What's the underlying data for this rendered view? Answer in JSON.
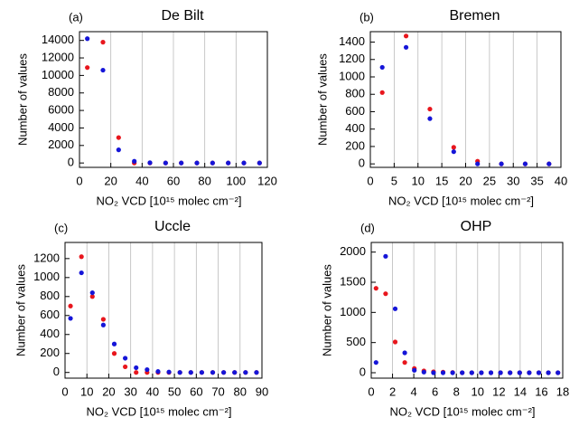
{
  "chart_data": [
    {
      "type": "scatter",
      "panel": "(a)",
      "title": "De Bilt",
      "xlabel": "NO₂ VCD [10¹⁵ molec cm⁻²]",
      "ylabel": "Number of values",
      "xlim": [
        0,
        120
      ],
      "xticks": [
        0,
        20,
        40,
        60,
        80,
        100,
        120
      ],
      "ylim": [
        -500,
        15000
      ],
      "yticks": [
        0,
        2000,
        4000,
        6000,
        8000,
        10000,
        12000,
        14000
      ],
      "grid": true,
      "x": [
        5,
        15,
        25,
        35,
        45,
        55,
        65,
        75,
        85,
        95,
        105,
        115
      ],
      "series": [
        {
          "color": "#e8161d",
          "values": [
            10900,
            13800,
            2900,
            0,
            0,
            0,
            0,
            0,
            0,
            0,
            0,
            0
          ]
        },
        {
          "color": "#1515d8",
          "values": [
            14200,
            10600,
            1500,
            200,
            30,
            0,
            0,
            0,
            0,
            0,
            0,
            0
          ]
        }
      ]
    },
    {
      "type": "scatter",
      "panel": "(b)",
      "title": "Bremen",
      "xlabel": "NO₂ VCD [10¹⁵ molec cm⁻²]",
      "ylabel": "Number of values",
      "xlim": [
        0,
        40
      ],
      "xticks": [
        0,
        5,
        10,
        15,
        20,
        25,
        30,
        35,
        40
      ],
      "ylim": [
        -40,
        1520
      ],
      "yticks": [
        0,
        200,
        400,
        600,
        800,
        1000,
        1200,
        1400
      ],
      "grid": true,
      "x": [
        2.5,
        7.5,
        12.5,
        17.5,
        22.5,
        27.5,
        32.5,
        37.5
      ],
      "series": [
        {
          "color": "#e8161d",
          "values": [
            820,
            1470,
            630,
            190,
            30,
            0,
            0,
            0
          ]
        },
        {
          "color": "#1515d8",
          "values": [
            1110,
            1340,
            520,
            140,
            0,
            0,
            0,
            0
          ]
        }
      ]
    },
    {
      "type": "scatter",
      "panel": "(c)",
      "title": "Uccle",
      "xlabel": "NO₂ VCD [10¹⁵ molec cm⁻²]",
      "ylabel": "Number of values",
      "xlim": [
        0,
        90
      ],
      "xticks": [
        0,
        10,
        20,
        30,
        40,
        50,
        60,
        70,
        80,
        90
      ],
      "ylim": [
        -60,
        1370
      ],
      "yticks": [
        0,
        200,
        400,
        600,
        800,
        1000,
        1200
      ],
      "grid": true,
      "x": [
        2.5,
        7.5,
        12.5,
        17.5,
        22.5,
        27.5,
        32.5,
        37.5,
        42.5,
        47.5,
        52.5,
        57.5,
        62.5,
        67.5,
        72.5,
        77.5,
        82.5,
        87.5
      ],
      "series": [
        {
          "color": "#e8161d",
          "values": [
            700,
            1220,
            800,
            560,
            200,
            60,
            0,
            0,
            0,
            0,
            0,
            0,
            0,
            0,
            0,
            0,
            0,
            0
          ]
        },
        {
          "color": "#1515d8",
          "values": [
            570,
            1050,
            840,
            500,
            300,
            150,
            50,
            30,
            10,
            5,
            0,
            0,
            0,
            0,
            0,
            0,
            0,
            0
          ]
        }
      ]
    },
    {
      "type": "scatter",
      "panel": "(d)",
      "title": "OHP",
      "xlabel": "NO₂ VCD [10¹⁵ molec cm⁻²]",
      "ylabel": "Number of values",
      "xlim": [
        0,
        18
      ],
      "xticks": [
        0,
        2,
        4,
        6,
        8,
        10,
        12,
        14,
        16,
        18
      ],
      "ylim": [
        -90,
        2160
      ],
      "yticks": [
        0,
        500,
        1000,
        1500,
        2000
      ],
      "grid": true,
      "x": [
        0.45,
        1.35,
        2.25,
        3.15,
        4.05,
        4.95,
        5.85,
        6.75,
        7.65,
        8.55,
        9.45,
        10.35,
        11.25,
        12.15,
        13.05,
        13.95,
        14.85,
        15.75,
        16.65,
        17.55
      ],
      "series": [
        {
          "color": "#e8161d",
          "values": [
            1400,
            1310,
            510,
            170,
            70,
            30,
            15,
            10,
            5,
            0,
            0,
            0,
            0,
            0,
            0,
            0,
            0,
            0,
            0,
            0
          ]
        },
        {
          "color": "#1515d8",
          "values": [
            170,
            1930,
            1060,
            330,
            40,
            10,
            0,
            0,
            0,
            0,
            0,
            0,
            0,
            0,
            0,
            0,
            0,
            0,
            0,
            0
          ]
        }
      ]
    }
  ]
}
